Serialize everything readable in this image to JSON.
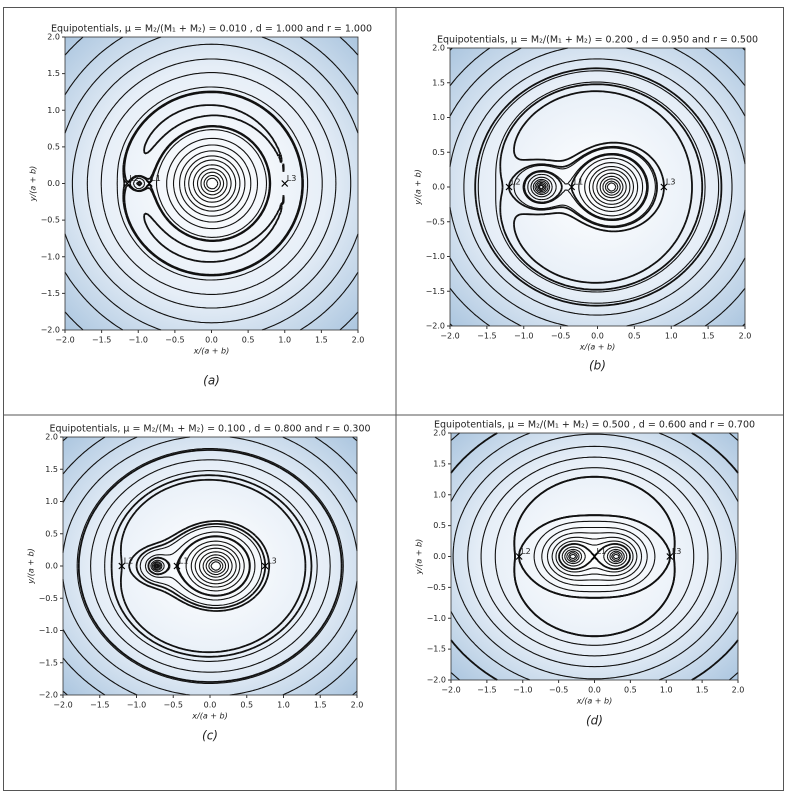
{
  "chart_data": [
    {
      "type": "contour",
      "title": "Equipotentials,  μ = M₂/(M₁ + M₂) = 0.010 , d = 1.000 and r = 1.000",
      "xlabel": "x/(a + b)",
      "ylabel": "y/(a + b)",
      "caption": "(a)",
      "xlim": [
        -2,
        2
      ],
      "ylim": [
        -2,
        2
      ],
      "xticks": [
        {
          "value": -2,
          "label": "−2.0"
        },
        {
          "value": -1.5,
          "label": "−1.5"
        },
        {
          "value": -1,
          "label": "−1.0"
        },
        {
          "value": -0.5,
          "label": "−0.5"
        },
        {
          "value": 0,
          "label": "0.0"
        },
        {
          "value": 0.5,
          "label": "0.5"
        },
        {
          "value": 1,
          "label": "1.0"
        },
        {
          "value": 1.5,
          "label": "1.5"
        },
        {
          "value": 2,
          "label": "2.0"
        }
      ],
      "yticks": [
        {
          "value": -2,
          "label": "−2.0"
        },
        {
          "value": -1.5,
          "label": "−1.5"
        },
        {
          "value": -1,
          "label": "−1.0"
        },
        {
          "value": -0.5,
          "label": "−0.5"
        },
        {
          "value": 0,
          "label": "0.0"
        },
        {
          "value": 0.5,
          "label": "0.5"
        },
        {
          "value": 1,
          "label": "1.0"
        },
        {
          "value": 1.5,
          "label": "1.5"
        },
        {
          "value": 2,
          "label": "2.0"
        }
      ],
      "points": [
        {
          "label": "L1",
          "x": -0.85,
          "y": 0
        },
        {
          "label": "L2",
          "x": -1.15,
          "y": 0
        },
        {
          "label": "L3",
          "x": 1.0,
          "y": 0
        }
      ]
    },
    {
      "type": "contour",
      "title": "Equipotentials,  μ = M₂/(M₁ + M₂) = 0.200 , d = 0.950 and r = 0.500",
      "xlabel": "x/(a + b)",
      "ylabel": "y/(a + b)",
      "caption": "(b)",
      "xlim": [
        -2,
        2
      ],
      "ylim": [
        -2,
        2
      ],
      "xticks": [
        {
          "value": -2,
          "label": "−2.0"
        },
        {
          "value": -1.5,
          "label": "−1.5"
        },
        {
          "value": -1,
          "label": "−1.0"
        },
        {
          "value": -0.5,
          "label": "−0.5"
        },
        {
          "value": 0,
          "label": "0.0"
        },
        {
          "value": 0.5,
          "label": "0.5"
        },
        {
          "value": 1,
          "label": "1.0"
        },
        {
          "value": 1.5,
          "label": "1.5"
        },
        {
          "value": 2,
          "label": "2.0"
        }
      ],
      "yticks": [
        {
          "value": -2,
          "label": "−2.0"
        },
        {
          "value": -1.5,
          "label": "−1.5"
        },
        {
          "value": -1,
          "label": "−1.0"
        },
        {
          "value": -0.5,
          "label": "−0.5"
        },
        {
          "value": 0,
          "label": "0.0"
        },
        {
          "value": 0.5,
          "label": "0.5"
        },
        {
          "value": 1,
          "label": "1.0"
        },
        {
          "value": 1.5,
          "label": "1.5"
        },
        {
          "value": 2,
          "label": "2.0"
        }
      ],
      "points": [
        {
          "label": "L1",
          "x": -0.35,
          "y": 0
        },
        {
          "label": "L2",
          "x": -1.2,
          "y": 0
        },
        {
          "label": "L3",
          "x": 0.9,
          "y": 0
        }
      ]
    },
    {
      "type": "contour",
      "title": "Equipotentials,  μ = M₂/(M₁ + M₂) = 0.100 , d = 0.800 and r = 0.300",
      "xlabel": "x/(a + b)",
      "ylabel": "y/(a + b)",
      "caption": "(c)",
      "xlim": [
        -2,
        2
      ],
      "ylim": [
        -2,
        2
      ],
      "xticks": [
        {
          "value": -2,
          "label": "−2.0"
        },
        {
          "value": -1.5,
          "label": "−1.5"
        },
        {
          "value": -1,
          "label": "−1.0"
        },
        {
          "value": -0.5,
          "label": "−0.5"
        },
        {
          "value": 0,
          "label": "0.0"
        },
        {
          "value": 0.5,
          "label": "0.5"
        },
        {
          "value": 1,
          "label": "1.0"
        },
        {
          "value": 1.5,
          "label": "1.5"
        },
        {
          "value": 2,
          "label": "2.0"
        }
      ],
      "yticks": [
        {
          "value": -2,
          "label": "−2.0"
        },
        {
          "value": -1.5,
          "label": "−1.5"
        },
        {
          "value": -1,
          "label": "−1.0"
        },
        {
          "value": -0.5,
          "label": "−0.5"
        },
        {
          "value": 0,
          "label": "0.0"
        },
        {
          "value": 0.5,
          "label": "0.5"
        },
        {
          "value": 1,
          "label": "1.0"
        },
        {
          "value": 1.5,
          "label": "1.5"
        },
        {
          "value": 2,
          "label": "2.0"
        }
      ],
      "points": [
        {
          "label": "L1",
          "x": -0.45,
          "y": 0
        },
        {
          "label": "L2",
          "x": -1.2,
          "y": 0
        },
        {
          "label": "L3",
          "x": 0.75,
          "y": 0
        }
      ]
    },
    {
      "type": "contour",
      "title": "Equipotentials,  μ = M₂/(M₁ + M₂) = 0.500 , d = 0.600 and r = 0.700",
      "xlabel": "x/(a + b)",
      "ylabel": "y/(a + b)",
      "caption": "(d)",
      "xlim": [
        -2,
        2
      ],
      "ylim": [
        -2,
        2
      ],
      "xticks": [
        {
          "value": -2,
          "label": "−2.0"
        },
        {
          "value": -1.5,
          "label": "−1.5"
        },
        {
          "value": -1,
          "label": "−1.0"
        },
        {
          "value": -0.5,
          "label": "−0.5"
        },
        {
          "value": 0,
          "label": "0.0"
        },
        {
          "value": 0.5,
          "label": "0.5"
        },
        {
          "value": 1,
          "label": "1.0"
        },
        {
          "value": 1.5,
          "label": "1.5"
        },
        {
          "value": 2,
          "label": "2.0"
        }
      ],
      "yticks": [
        {
          "value": -2,
          "label": "−2.0"
        },
        {
          "value": -1.5,
          "label": "−1.5"
        },
        {
          "value": -1,
          "label": "−1.0"
        },
        {
          "value": -0.5,
          "label": "−0.5"
        },
        {
          "value": 0,
          "label": "0.0"
        },
        {
          "value": 0.5,
          "label": "0.5"
        },
        {
          "value": 1,
          "label": "1.0"
        },
        {
          "value": 1.5,
          "label": "1.5"
        },
        {
          "value": 2,
          "label": "2.0"
        }
      ],
      "points": [
        {
          "label": "L1",
          "x": 0,
          "y": 0
        },
        {
          "label": "L2",
          "x": -1.05,
          "y": 0
        },
        {
          "label": "L3",
          "x": 1.05,
          "y": 0
        }
      ]
    }
  ]
}
